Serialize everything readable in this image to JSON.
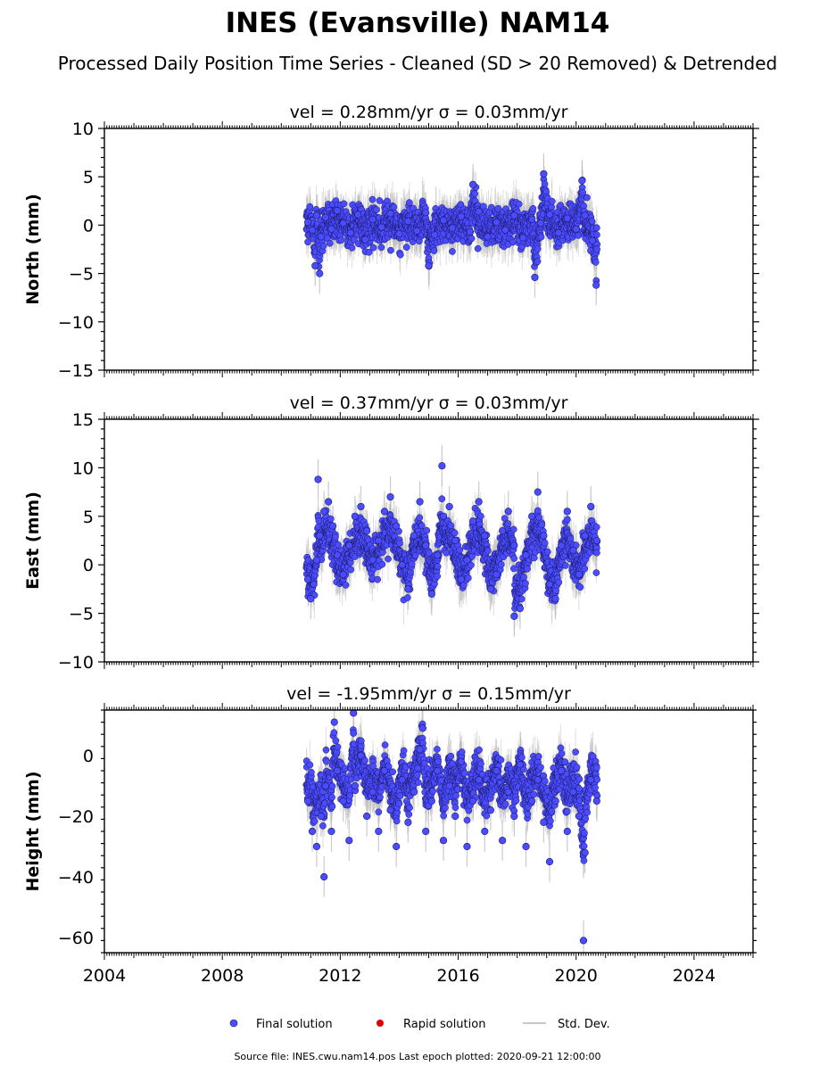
{
  "figure": {
    "title": "INES (Evansville) NAM14",
    "subtitle": "Processed Daily Position Time Series - Cleaned (SD > 20 Removed) & Detrended",
    "footer": "Source file: INES.cwu.nam14.pos  Last epoch plotted: 2020-09-21 12:00:00"
  },
  "legend": {
    "placement": "bottom-center",
    "items": [
      {
        "label": "Final solution",
        "color": "#4b4bff",
        "marker": "circle"
      },
      {
        "label": "Rapid solution",
        "color": "#e00000",
        "marker": "circle"
      },
      {
        "label": "Std. Dev.",
        "color": "#c8c8c8",
        "marker": "line"
      }
    ]
  },
  "colors": {
    "final": "#4b4bff",
    "final_edge": "#1a1a66",
    "errorbar": "#b5b5b5",
    "axis": "#000000"
  },
  "chart_data": [
    {
      "type": "scatter",
      "name": "north",
      "title": "vel = 0.28mm/yr   σ = 0.03mm/yr",
      "ylabel": "North (mm)",
      "xlim": [
        2004,
        2026
      ],
      "ylim": [
        -15,
        10
      ],
      "yticks": [
        -15,
        -10,
        -5,
        0,
        5,
        10
      ],
      "ytick_labels": [
        "−15",
        "−10",
        "−5",
        "0",
        "5",
        "10"
      ],
      "grid": false,
      "series_extent": [
        2010.85,
        2020.72
      ],
      "series": {
        "name": "Final solution",
        "x": [
          2010.9,
          2011.05,
          2011.2,
          2011.35,
          2011.5,
          2011.7,
          2011.9,
          2012.1,
          2012.35,
          2012.6,
          2012.85,
          2013.1,
          2013.4,
          2013.7,
          2014.0,
          2014.3,
          2014.6,
          2014.9,
          2015.2,
          2015.5,
          2015.8,
          2016.1,
          2016.4,
          2016.7,
          2017.0,
          2017.3,
          2017.6,
          2017.9,
          2018.2,
          2018.5,
          2018.8,
          2019.1,
          2019.4,
          2019.7,
          2020.0,
          2020.3,
          2020.55,
          2020.7,
          2011.15,
          2011.3,
          2015.0,
          2016.5,
          2018.9,
          2020.2,
          2018.6,
          2020.68
        ],
        "y": [
          0.3,
          -0.5,
          1.0,
          -1.2,
          0.8,
          -0.4,
          1.5,
          0.2,
          -0.8,
          1.1,
          -1.5,
          0.6,
          -0.2,
          1.2,
          -0.9,
          0.4,
          -0.6,
          1.3,
          -1.0,
          0.5,
          -0.3,
          0.9,
          -0.7,
          1.4,
          -1.2,
          0.3,
          -0.5,
          1.0,
          -1.3,
          0.6,
          0.2,
          1.1,
          -0.8,
          0.7,
          -0.4,
          1.0,
          -1.6,
          -2.5,
          -4.2,
          -5.0,
          -4.2,
          4.2,
          5.3,
          4.6,
          -5.4,
          -6.2
        ]
      }
    },
    {
      "type": "scatter",
      "name": "east",
      "title": "vel = 0.37mm/yr   σ = 0.03mm/yr",
      "ylabel": "East (mm)",
      "xlim": [
        2004,
        2026
      ],
      "ylim": [
        -10,
        15
      ],
      "yticks": [
        -10,
        -5,
        0,
        5,
        10,
        15
      ],
      "ytick_labels": [
        "−10",
        "−5",
        "0",
        "5",
        "10",
        "15"
      ],
      "grid": false,
      "series_extent": [
        2010.85,
        2020.72
      ],
      "series": {
        "name": "Final solution",
        "x": [
          2010.9,
          2011.0,
          2011.1,
          2011.2,
          2011.3,
          2011.45,
          2011.6,
          2011.75,
          2011.9,
          2012.1,
          2012.3,
          2012.5,
          2012.7,
          2012.9,
          2013.1,
          2013.3,
          2013.5,
          2013.7,
          2013.9,
          2014.1,
          2014.3,
          2014.5,
          2014.7,
          2014.9,
          2015.1,
          2015.3,
          2015.5,
          2015.7,
          2015.9,
          2016.1,
          2016.3,
          2016.5,
          2016.7,
          2016.9,
          2017.1,
          2017.3,
          2017.5,
          2017.7,
          2017.9,
          2018.1,
          2018.3,
          2018.5,
          2018.7,
          2018.9,
          2019.1,
          2019.3,
          2019.5,
          2019.7,
          2019.9,
          2020.1,
          2020.3,
          2020.5,
          2020.7,
          2011.25,
          2015.45,
          2017.9
        ],
        "y": [
          -1.5,
          -3.5,
          -2.0,
          0.5,
          3.0,
          5.5,
          6.5,
          4.0,
          1.0,
          -1.0,
          2.0,
          5.0,
          6.0,
          3.5,
          0.5,
          2.5,
          5.5,
          7.0,
          4.0,
          0.0,
          -2.5,
          3.0,
          6.5,
          2.0,
          -3.0,
          1.0,
          5.0,
          6.0,
          2.5,
          -1.5,
          0.5,
          4.5,
          6.5,
          3.0,
          -2.5,
          -1.0,
          3.5,
          5.5,
          2.0,
          -4.5,
          1.0,
          5.0,
          7.5,
          3.0,
          -2.0,
          -3.5,
          2.0,
          5.5,
          1.5,
          -1.0,
          3.0,
          6.0,
          2.5,
          8.8,
          10.2,
          -5.3
        ]
      }
    },
    {
      "type": "scatter",
      "name": "height",
      "title": "vel = -1.95mm/yr   σ = 0.15mm/yr",
      "ylabel": "Height (mm)",
      "xlim": [
        2004,
        2026
      ],
      "ylim": [
        -65,
        15
      ],
      "yticks": [
        -60,
        -40,
        -20,
        0
      ],
      "ytick_labels": [
        "−60",
        "−40",
        "−20",
        "0"
      ],
      "grid": false,
      "series_extent": [
        2010.85,
        2020.72
      ],
      "series": {
        "name": "Final solution",
        "x": [
          2010.9,
          2011.05,
          2011.2,
          2011.35,
          2011.5,
          2011.7,
          2011.9,
          2012.1,
          2012.3,
          2012.5,
          2012.7,
          2012.9,
          2013.1,
          2013.3,
          2013.5,
          2013.7,
          2013.9,
          2014.1,
          2014.3,
          2014.5,
          2014.7,
          2014.9,
          2015.1,
          2015.3,
          2015.5,
          2015.7,
          2015.9,
          2016.1,
          2016.3,
          2016.5,
          2016.7,
          2016.9,
          2017.1,
          2017.3,
          2017.5,
          2017.7,
          2017.9,
          2018.1,
          2018.3,
          2018.5,
          2018.7,
          2018.9,
          2019.1,
          2019.3,
          2019.5,
          2019.7,
          2019.9,
          2020.1,
          2020.3,
          2020.5,
          2020.7,
          2011.45,
          2011.8,
          2012.45,
          2014.8,
          2020.25
        ],
        "y": [
          -15,
          -25,
          -30,
          -20,
          -10,
          -25,
          -5,
          -15,
          -28,
          -10,
          0,
          -20,
          -12,
          -25,
          -5,
          -18,
          -30,
          -8,
          -22,
          -12,
          2,
          -25,
          -15,
          -5,
          -28,
          -10,
          -20,
          -2,
          -30,
          -15,
          -8,
          -25,
          -18,
          -5,
          -28,
          -12,
          -20,
          -3,
          -30,
          -15,
          -8,
          -22,
          -35,
          -15,
          -5,
          -25,
          -12,
          -20,
          -32,
          -8,
          -15,
          -40,
          11,
          14,
          9,
          -61
        ]
      }
    }
  ]
}
